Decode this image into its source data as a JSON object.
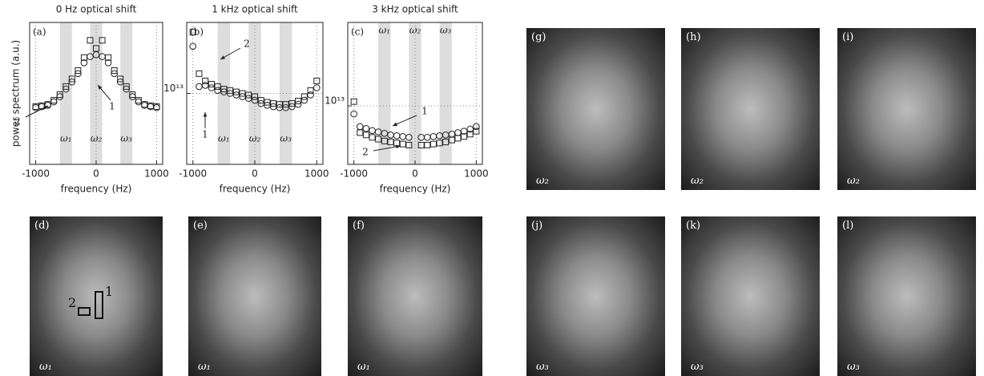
{
  "chart_data": [
    {
      "type": "scatter",
      "label": "(a)",
      "title": "0 Hz optical shift",
      "y_label": "power spectrum (a.u.)",
      "x_label": "frequency (Hz)",
      "log_y": true,
      "xlim": [
        -1100,
        1100
      ],
      "ylim": [
        1000000000000.0,
        100000000000000.0
      ],
      "xticks": [
        -1000,
        0,
        1000
      ],
      "grid": true,
      "x": [
        -1000,
        -900,
        -800,
        -700,
        -600,
        -500,
        -400,
        -300,
        -200,
        -100,
        0,
        100,
        200,
        300,
        400,
        500,
        600,
        700,
        800,
        900,
        1000
      ],
      "series": [
        {
          "marker": "circle",
          "color": "#222",
          "values": [
            6300000000000.0,
            6500000000000.0,
            6800000000000.0,
            7600000000000.0,
            9000000000000.0,
            11500000000000.0,
            14500000000000.0,
            19000000000000.0,
            27000000000000.0,
            33000000000000.0,
            35000000000000.0,
            33000000000000.0,
            27000000000000.0,
            19000000000000.0,
            14500000000000.0,
            11500000000000.0,
            9000000000000.0,
            7600000000000.0,
            6800000000000.0,
            6500000000000.0,
            6300000000000.0
          ]
        },
        {
          "marker": "square",
          "color": "#222",
          "values": [
            6500000000000.0,
            6700000000000.0,
            7000000000000.0,
            8000000000000.0,
            9600000000000.0,
            12500000000000.0,
            16000000000000.0,
            21000000000000.0,
            32000000000000.0,
            56000000000000.0,
            43000000000000.0,
            56000000000000.0,
            32000000000000.0,
            21000000000000.0,
            16000000000000.0,
            12500000000000.0,
            9600000000000.0,
            8000000000000.0,
            7000000000000.0,
            6700000000000.0,
            6500000000000.0
          ]
        }
      ],
      "bands": [
        [
          -600,
          -400
        ],
        [
          -100,
          100
        ],
        [
          400,
          600
        ]
      ],
      "band_labels": [
        "ω₁",
        "ω₂",
        "ω₃"
      ],
      "band_label_position": "bottom",
      "annotations": [
        "1",
        "2"
      ]
    },
    {
      "type": "scatter",
      "label": "(b)",
      "title": "1 kHz optical shift",
      "x_label": "frequency (Hz)",
      "log_y": true,
      "xlim": [
        -1100,
        1100
      ],
      "ylim": [
        1000000000000.0,
        100000000000000.0
      ],
      "xticks": [
        -1000,
        0,
        1000
      ],
      "yticks": [
        {
          "value": 10000000000000.0,
          "label": "10¹³"
        }
      ],
      "grid": true,
      "x": [
        -1000,
        -900,
        -800,
        -700,
        -600,
        -500,
        -400,
        -300,
        -200,
        -100,
        0,
        100,
        200,
        300,
        400,
        500,
        600,
        700,
        800,
        900,
        1000
      ],
      "series": [
        {
          "marker": "circle",
          "color": "#222",
          "values": [
            46000000000000.0,
            12500000000000.0,
            13000000000000.0,
            12000000000000.0,
            11000000000000.0,
            10500000000000.0,
            10000000000000.0,
            9500000000000.0,
            9000000000000.0,
            8500000000000.0,
            8000000000000.0,
            7200000000000.0,
            6800000000000.0,
            6500000000000.0,
            6300000000000.0,
            6300000000000.0,
            6500000000000.0,
            7000000000000.0,
            8000000000000.0,
            9500000000000.0,
            12000000000000.0
          ]
        },
        {
          "marker": "square",
          "color": "#222",
          "values": [
            73000000000000.0,
            19000000000000.0,
            15000000000000.0,
            13500000000000.0,
            12500000000000.0,
            11500000000000.0,
            11000000000000.0,
            10500000000000.0,
            10000000000000.0,
            9500000000000.0,
            9000000000000.0,
            8000000000000.0,
            7500000000000.0,
            7200000000000.0,
            7000000000000.0,
            7000000000000.0,
            7200000000000.0,
            7800000000000.0,
            9000000000000.0,
            11000000000000.0,
            15000000000000.0
          ]
        }
      ],
      "bands": [
        [
          -600,
          -400
        ],
        [
          -100,
          100
        ],
        [
          400,
          600
        ]
      ],
      "band_labels": [
        "ω₁",
        "ω₂",
        "ω₃"
      ],
      "band_label_position": "bottom",
      "annotations": [
        "1",
        "2"
      ]
    },
    {
      "type": "scatter",
      "label": "(c)",
      "title": "3 kHz optical shift",
      "x_label": "frequency (Hz)",
      "log_y": true,
      "xlim": [
        -1100,
        1100
      ],
      "ylim": [
        1500000000000.0,
        150000000000000.0
      ],
      "xticks": [
        -1000,
        0,
        1000
      ],
      "yticks": [
        {
          "value": 10000000000000.0,
          "label": "10¹³"
        }
      ],
      "grid": true,
      "x": [
        -1000,
        -900,
        -800,
        -700,
        -600,
        -500,
        -400,
        -300,
        -200,
        -100,
        0,
        100,
        200,
        300,
        400,
        500,
        600,
        700,
        800,
        900,
        1000
      ],
      "series": [
        {
          "marker": "circle",
          "color": "#222",
          "values": [
            7700000000000.0,
            5100000000000.0,
            4800000000000.0,
            4500000000000.0,
            4300000000000.0,
            4100000000000.0,
            3900000000000.0,
            3800000000000.0,
            3700000000000.0,
            3600000000000.0,
            null,
            3600000000000.0,
            3600000000000.0,
            3700000000000.0,
            3800000000000.0,
            3900000000000.0,
            4000000000000.0,
            4200000000000.0,
            4400000000000.0,
            4700000000000.0,
            5100000000000.0
          ]
        },
        {
          "marker": "square",
          "color": "#222",
          "values": [
            11500000000000.0,
            4200000000000.0,
            3900000000000.0,
            3600000000000.0,
            3400000000000.0,
            3200000000000.0,
            3100000000000.0,
            3000000000000.0,
            2900000000000.0,
            2800000000000.0,
            null,
            2800000000000.0,
            2800000000000.0,
            2900000000000.0,
            3000000000000.0,
            3100000000000.0,
            3300000000000.0,
            3500000000000.0,
            3700000000000.0,
            4000000000000.0,
            4400000000000.0
          ]
        }
      ],
      "bands": [
        [
          -600,
          -400
        ],
        [
          -100,
          100
        ],
        [
          400,
          600
        ]
      ],
      "band_labels": [
        "ω₁",
        "ω₂",
        "ω₃"
      ],
      "band_label_position": "top",
      "annotations": [
        "1",
        "2"
      ]
    }
  ],
  "images": [
    {
      "label": "(d)",
      "caption": "ω₁",
      "annotations": [
        "2",
        "1"
      ]
    },
    {
      "label": "(e)",
      "caption": "ω₁"
    },
    {
      "label": "(f)",
      "caption": "ω₁"
    },
    {
      "label": "(g)",
      "caption": "ω₂"
    },
    {
      "label": "(h)",
      "caption": "ω₂"
    },
    {
      "label": "(i)",
      "caption": "ω₂"
    },
    {
      "label": "(j)",
      "caption": "ω₃"
    },
    {
      "label": "(k)",
      "caption": "ω₃"
    },
    {
      "label": "(l)",
      "caption": "ω₃"
    }
  ]
}
